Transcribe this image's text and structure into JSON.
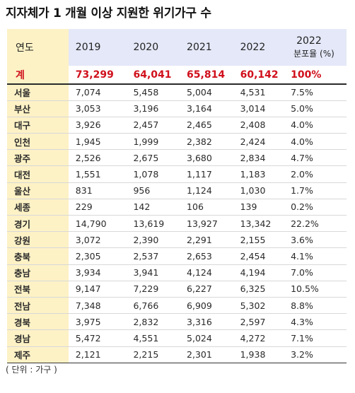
{
  "title": "지자체가 1 개월 이상 지원한 위기가구 수",
  "header": {
    "region": "연도",
    "years": [
      "2019",
      "2020",
      "2021",
      "2022"
    ],
    "ratio_year": "2022",
    "ratio_label": "분포율 (%)"
  },
  "total": {
    "label": "계",
    "values": [
      "73,299",
      "64,041",
      "65,814",
      "60,142"
    ],
    "ratio": "100%"
  },
  "rows": [
    {
      "region": "서울",
      "values": [
        "7,074",
        "5,458",
        "5,004",
        "4,531"
      ],
      "ratio": "7.5%"
    },
    {
      "region": "부산",
      "values": [
        "3,053",
        "3,196",
        "3,164",
        "3,014"
      ],
      "ratio": "5.0%"
    },
    {
      "region": "대구",
      "values": [
        "3,926",
        "2,457",
        "2,465",
        "2,408"
      ],
      "ratio": "4.0%"
    },
    {
      "region": "인천",
      "values": [
        "1,945",
        "1,999",
        "2,382",
        "2,424"
      ],
      "ratio": "4.0%"
    },
    {
      "region": "광주",
      "values": [
        "2,526",
        "2,675",
        "3,680",
        "2,834"
      ],
      "ratio": "4.7%"
    },
    {
      "region": "대전",
      "values": [
        "1,551",
        "1,078",
        "1,117",
        "1,183"
      ],
      "ratio": "2.0%"
    },
    {
      "region": "울산",
      "values": [
        "831",
        "956",
        "1,124",
        "1,030"
      ],
      "ratio": "1.7%"
    },
    {
      "region": "세종",
      "values": [
        "229",
        "142",
        "106",
        "139"
      ],
      "ratio": "0.2%"
    },
    {
      "region": "경기",
      "values": [
        "14,790",
        "13,619",
        "13,927",
        "13,342"
      ],
      "ratio": "22.2%"
    },
    {
      "region": "강원",
      "values": [
        "3,072",
        "2,390",
        "2,291",
        "2,155"
      ],
      "ratio": "3.6%"
    },
    {
      "region": "충북",
      "values": [
        "2,305",
        "2,537",
        "2,653",
        "2,454"
      ],
      "ratio": "4.1%"
    },
    {
      "region": "충남",
      "values": [
        "3,934",
        "3,941",
        "4,124",
        "4,194"
      ],
      "ratio": "7.0%"
    },
    {
      "region": "전북",
      "values": [
        "9,147",
        "7,229",
        "6,227",
        "6,325"
      ],
      "ratio": "10.5%"
    },
    {
      "region": "전남",
      "values": [
        "7,348",
        "6,766",
        "6,909",
        "5,302"
      ],
      "ratio": "8.8%"
    },
    {
      "region": "경북",
      "values": [
        "3,975",
        "2,832",
        "3,316",
        "2,597"
      ],
      "ratio": "4.3%"
    },
    {
      "region": "경남",
      "values": [
        "5,472",
        "4,551",
        "5,024",
        "4,272"
      ],
      "ratio": "7.1%"
    },
    {
      "region": "제주",
      "values": [
        "2,121",
        "2,215",
        "2,301",
        "1,938"
      ],
      "ratio": "3.2%"
    }
  ],
  "unit_note": "( 단위 : 가구 )"
}
